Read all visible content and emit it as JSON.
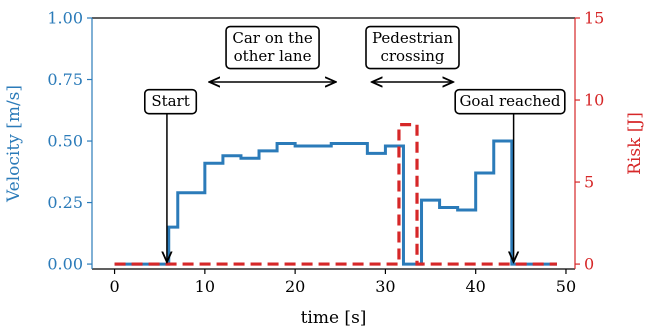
{
  "chart_data": {
    "type": "line",
    "xlabel": "time [s]",
    "ylabel_left": "Velocity [m/s]",
    "ylabel_right": "Risk [J]",
    "xlim": [
      -2.5,
      51
    ],
    "ylim_left": [
      -0.02,
      1.0
    ],
    "ylim_right": [
      -0.3,
      15
    ],
    "x_ticks": [
      0,
      10,
      20,
      30,
      40,
      50
    ],
    "y_left_ticks": [
      "0.00",
      "0.25",
      "0.50",
      "0.75",
      "1.00"
    ],
    "y_left_tick_values": [
      0,
      0.25,
      0.5,
      0.75,
      1.0
    ],
    "y_right_ticks": [
      "0",
      "5",
      "10",
      "15"
    ],
    "y_right_tick_values": [
      0,
      5,
      10,
      15
    ],
    "colors": {
      "velocity": "#2b7bb9",
      "risk": "#d62728",
      "axes": "#000000"
    },
    "series": [
      {
        "axis": "left",
        "style": "step-solid",
        "x": [
          0,
          6,
          7,
          8,
          10,
          12,
          14,
          16,
          18,
          20,
          22,
          24,
          26,
          28,
          30,
          32,
          34,
          36,
          38,
          40,
          42,
          44,
          45,
          49
        ],
        "y": [
          0.0,
          0.15,
          0.29,
          0.29,
          0.41,
          0.44,
          0.43,
          0.46,
          0.49,
          0.48,
          0.48,
          0.49,
          0.49,
          0.45,
          0.48,
          0.0,
          0.26,
          0.23,
          0.22,
          0.37,
          0.5,
          0.0,
          0.0,
          0.0
        ]
      },
      {
        "axis": "right",
        "style": "step-dashed",
        "x": [
          0,
          31.5,
          33.5,
          49
        ],
        "y": [
          0,
          8.5,
          0,
          0
        ]
      }
    ],
    "annotations": [
      {
        "lines": [
          "Start"
        ],
        "target": [
          5.8,
          0.0
        ],
        "text_pos": [
          6.2,
          0.66
        ]
      },
      {
        "lines": [
          "Goal reached"
        ],
        "target": [
          44.2,
          0.0
        ],
        "text_pos": [
          43.8,
          0.66
        ]
      },
      {
        "lines": [
          "Car on the",
          "other lane"
        ],
        "range": [
          10.5,
          24.5
        ],
        "arrow_y": 0.74,
        "text_pos": [
          17.5,
          0.88
        ]
      },
      {
        "lines": [
          "Pedestrian",
          "crossing"
        ],
        "range": [
          28.5,
          37.5
        ],
        "arrow_y": 0.74,
        "text_pos": [
          33,
          0.88
        ]
      }
    ]
  }
}
